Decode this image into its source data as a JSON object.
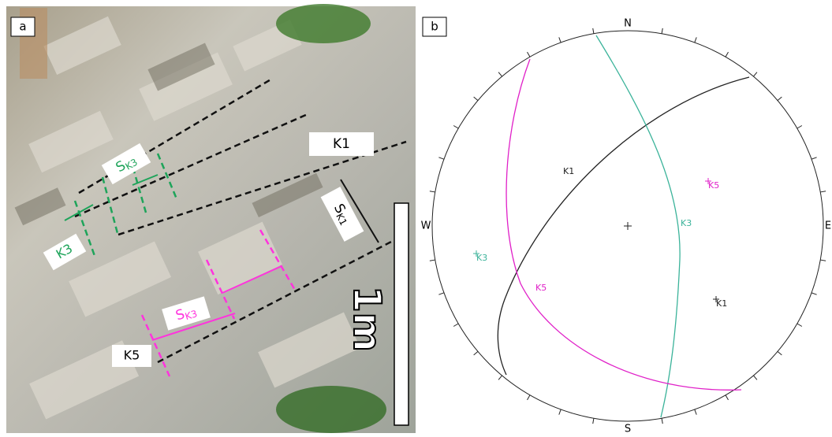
{
  "panel_a": {
    "label": "a",
    "labels": {
      "k1": "K1",
      "s_k1": {
        "main": "S",
        "sub": "K1"
      },
      "s_k3_green": {
        "main": "S",
        "sub": "K3"
      },
      "k3": "K3",
      "s_k3_magenta": {
        "main": "S",
        "sub": "K3"
      },
      "k5": "K5"
    },
    "scale": "1m"
  },
  "panel_b": {
    "label": "b",
    "directions": {
      "n": "N",
      "e": "E",
      "s": "S",
      "w": "W"
    },
    "planes": [
      {
        "name": "K1",
        "color": "#222222"
      },
      {
        "name": "K3",
        "color": "#3bb39a"
      },
      {
        "name": "K5",
        "color": "#e020c8"
      }
    ],
    "poles": [
      {
        "name": "K5",
        "color": "#e020c8"
      },
      {
        "name": "K3",
        "color": "#3bb39a"
      },
      {
        "name": "K1",
        "color": "#222222"
      }
    ]
  }
}
